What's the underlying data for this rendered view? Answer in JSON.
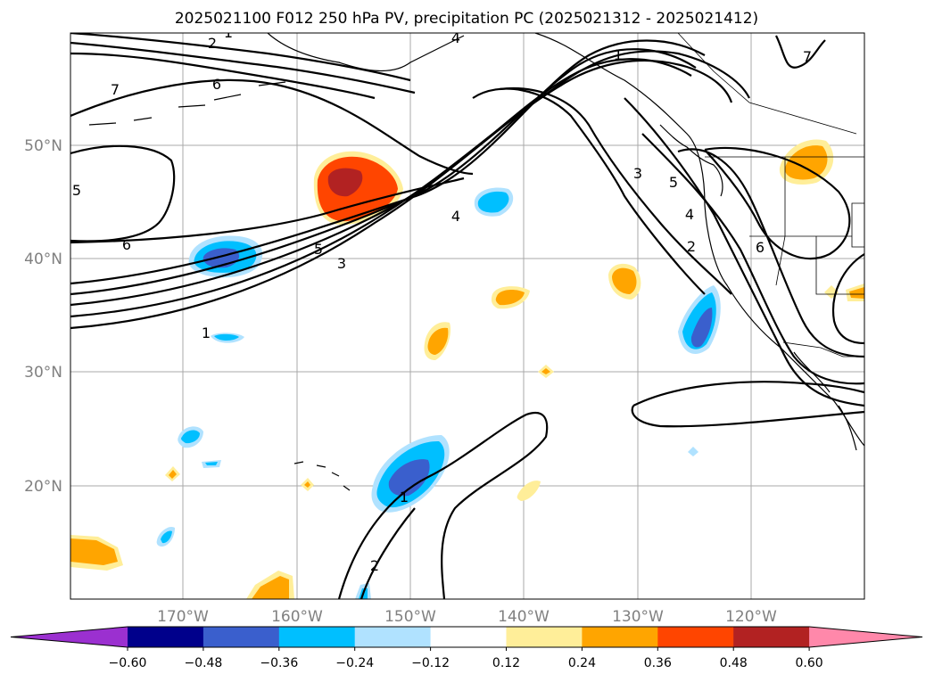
{
  "title": "2025021100 F012 250 hPa PV, precipitation PC (2025021312 - 2025021412)",
  "lat_labels": [
    "50°N",
    "40°N",
    "30°N",
    "20°N"
  ],
  "lon_labels": [
    "170°W",
    "160°W",
    "150°W",
    "140°W",
    "130°W",
    "120°W"
  ],
  "contour_labels": [
    "1",
    "2",
    "4",
    "1",
    "7",
    "7",
    "6",
    "5",
    "6",
    "5",
    "3",
    "4",
    "3",
    "5",
    "4",
    "2",
    "6",
    "1",
    "1",
    "2"
  ],
  "colorbar": {
    "ticks": [
      "−0.60",
      "−0.48",
      "−0.36",
      "−0.24",
      "−0.12",
      "0.12",
      "0.24",
      "0.36",
      "0.48",
      "0.60"
    ],
    "colors": [
      "#9b30d0",
      "#00008b",
      "#3a5fcd",
      "#00bfff",
      "#b0e2ff",
      "#ffffff",
      "#ffee99",
      "#ffa500",
      "#ff4500",
      "#b22222",
      "#ff88aa"
    ]
  }
}
